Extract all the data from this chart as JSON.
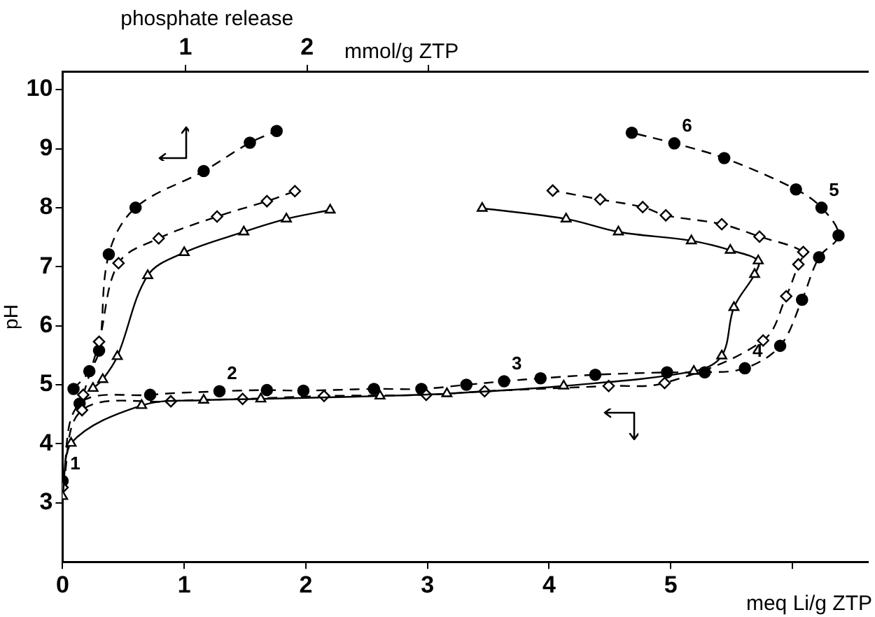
{
  "chart_data": {
    "type": "line",
    "title": "phosphate release",
    "xlabel": "meq Li/g ZTP",
    "x2label": "mmol/g ZTP",
    "ylabel": "pH",
    "xlim": [
      0,
      6.62
    ],
    "xticks": [
      0,
      1,
      2,
      3,
      4,
      5,
      {
        "value": 6,
        "label": null
      }
    ],
    "x2lim": [
      -0.01,
      6.61
    ],
    "x2ticks": [
      1,
      2,
      {
        "value": 3,
        "label": null
      }
    ],
    "ylim": [
      2,
      10.3
    ],
    "yticks": [
      3,
      4,
      5,
      6,
      7,
      8,
      9,
      10
    ],
    "grid": false,
    "legend": false,
    "series": [
      {
        "color": "#000000",
        "marker": "circle",
        "line_style": "dashed",
        "axis": "x2",
        "x": [
          0.08,
          0.21,
          0.29,
          0.37,
          0.59,
          1.15,
          1.53,
          1.75
        ],
        "values": [
          4.93,
          5.23,
          5.58,
          7.21,
          8.0,
          8.62,
          9.1,
          9.3
        ]
      },
      {
        "color": "#000000",
        "marker": "diamond",
        "line_style": "dashed",
        "axis": "x2",
        "x": [
          0.16,
          0.29,
          0.45,
          0.78,
          1.26,
          1.67,
          1.9
        ],
        "values": [
          4.83,
          5.73,
          7.06,
          7.48,
          7.85,
          8.11,
          8.28
        ]
      },
      {
        "color": "#000000",
        "marker": "triangle",
        "line_style": "solid",
        "axis": "x2",
        "x": [
          0.24,
          0.32,
          0.44,
          0.69,
          0.99,
          1.48,
          1.83,
          2.19
        ],
        "values": [
          4.94,
          5.09,
          5.48,
          6.85,
          7.24,
          7.59,
          7.81,
          7.96
        ]
      },
      {
        "color": "#000000",
        "marker": "circle",
        "line_style": "dashed",
        "x": [
          0,
          0.14,
          0.72,
          1.29,
          1.68,
          1.98,
          2.56,
          2.95,
          3.32,
          3.63,
          3.93,
          4.38,
          4.97,
          5.28,
          5.61,
          5.9,
          6.08,
          6.22,
          6.38,
          6.24,
          6.03,
          5.44,
          5.03,
          4.68
        ],
        "values": [
          3.37,
          4.68,
          4.83,
          4.89,
          4.91,
          4.9,
          4.93,
          4.93,
          5.0,
          5.06,
          5.11,
          5.17,
          5.21,
          5.21,
          5.28,
          5.66,
          6.44,
          7.16,
          7.53,
          8.0,
          8.31,
          8.84,
          9.09,
          9.27
        ]
      },
      {
        "color": "#000000",
        "marker": "diamond",
        "line_style": "dashed",
        "x": [
          0,
          0.16,
          0.89,
          1.48,
          2.15,
          2.99,
          3.47,
          4.49,
          4.95,
          5.76,
          5.95,
          6.05,
          6.09,
          5.73,
          5.42,
          4.96,
          4.77,
          4.42,
          4.03
        ],
        "values": [
          3.26,
          4.57,
          4.72,
          4.76,
          4.81,
          4.83,
          4.89,
          4.98,
          5.03,
          5.75,
          6.5,
          7.04,
          7.25,
          7.51,
          7.72,
          7.87,
          8.01,
          8.14,
          8.29
        ]
      },
      {
        "color": "#000000",
        "marker": "triangle",
        "line_style": "solid",
        "x": [
          0,
          0.07,
          0.65,
          1.16,
          1.63,
          2.61,
          3.16,
          4.12,
          5.19,
          5.42,
          5.52,
          5.69,
          5.72,
          5.49,
          5.17,
          4.57,
          4.14,
          3.45
        ],
        "values": [
          3.11,
          4.01,
          4.65,
          4.74,
          4.76,
          4.81,
          4.85,
          4.98,
          5.23,
          5.49,
          6.31,
          6.87,
          7.1,
          7.28,
          7.44,
          7.59,
          7.81,
          7.99
        ]
      }
    ],
    "annotations": [
      {
        "text": "1",
        "x": 0,
        "y": 3.37
      },
      {
        "text": "2",
        "x": 1.29,
        "y": 4.89
      },
      {
        "text": "3",
        "x": 3.63,
        "y": 5.06
      },
      {
        "text": "4",
        "x": 5.61,
        "y": 5.28
      },
      {
        "text": "5",
        "x": 6.24,
        "y": 8.0
      },
      {
        "text": "6",
        "x": 5.03,
        "y": 9.09
      }
    ]
  }
}
